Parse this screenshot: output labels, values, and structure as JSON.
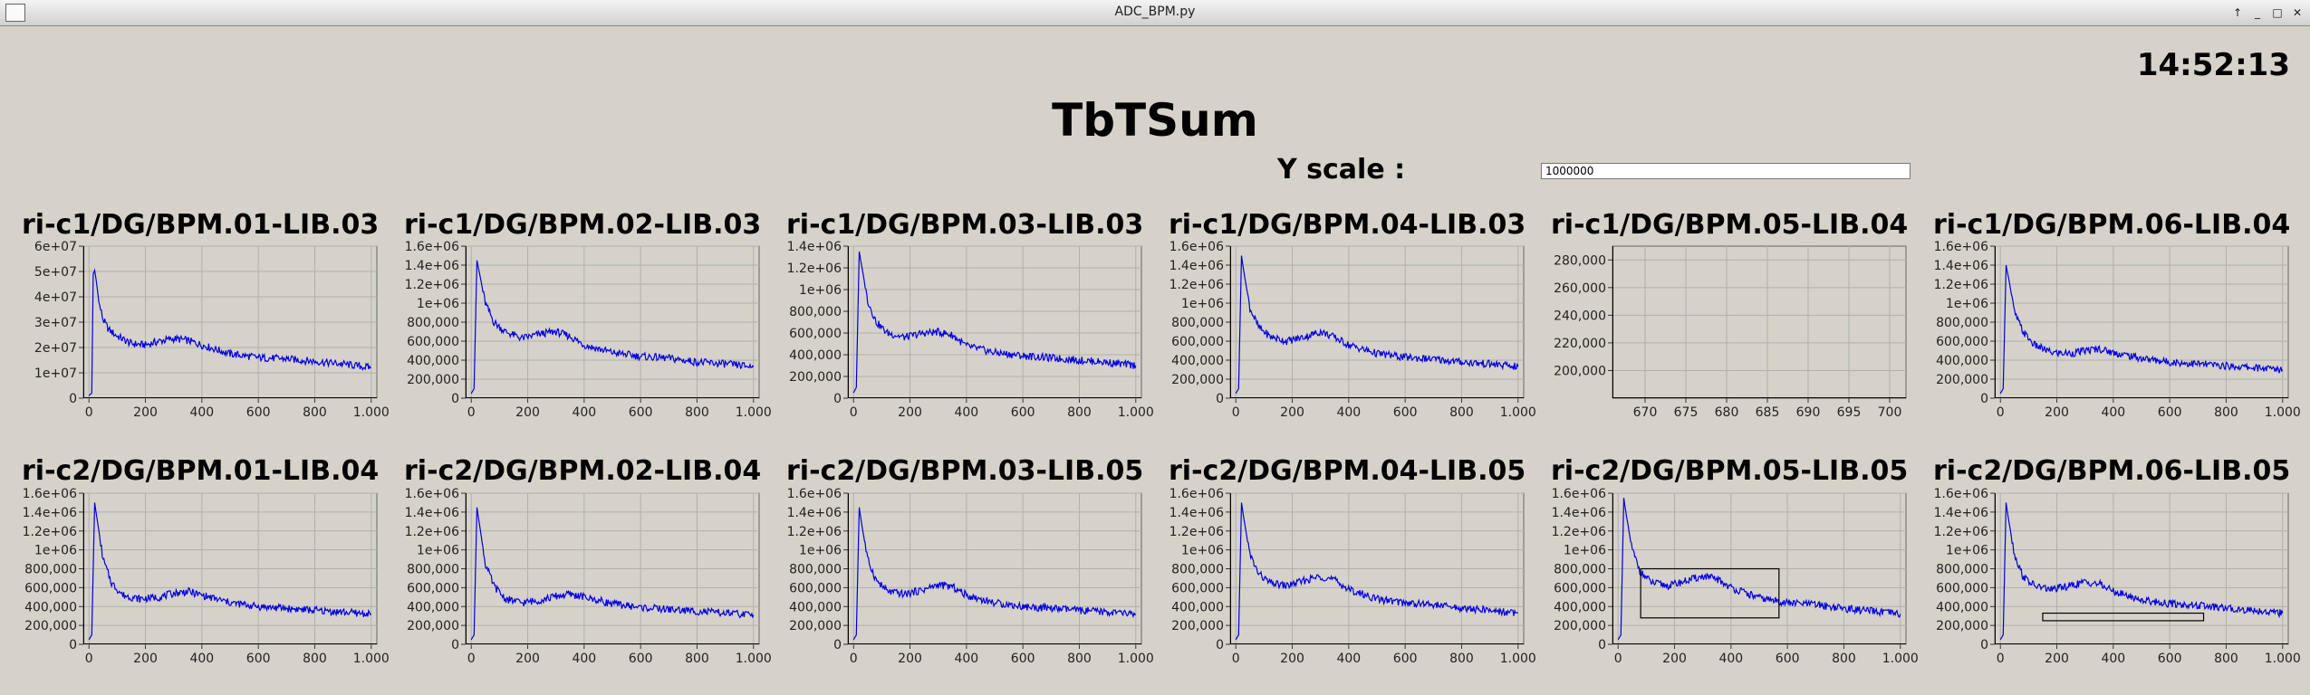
{
  "window": {
    "title": "ADC_BPM.py"
  },
  "clock": "14:52:13",
  "main_title": "TbTSum",
  "yscale": {
    "label": "Y scale :",
    "value": "1000000"
  },
  "colors": {
    "trace": "#0000dd",
    "grid": "#b0b0b0",
    "plot_bg": "#d6d2c9"
  },
  "chart_data": [
    {
      "type": "line",
      "title": "ri-c1/DG/BPM.01-LIB.03",
      "xlim": [
        -20,
        1020
      ],
      "ylim": [
        0,
        60000000
      ],
      "xticks": [
        0,
        200,
        400,
        600,
        800,
        1000
      ],
      "xtick_labels": [
        "0",
        "200",
        "400",
        "600",
        "800",
        "1.000"
      ],
      "yticks": [
        0,
        10000000,
        20000000,
        30000000,
        40000000,
        50000000,
        60000000
      ],
      "ytick_labels": [
        "0",
        "1e+07",
        "2e+07",
        "3e+07",
        "4e+07",
        "5e+07",
        "6e+07"
      ],
      "series": [
        {
          "x": [
            0,
            10,
            15,
            20,
            25,
            35,
            50,
            70,
            100,
            150,
            200,
            250,
            300,
            350,
            400,
            500,
            600,
            700,
            800,
            900,
            1000
          ],
          "y": [
            1000000,
            2000000,
            49000000,
            50500000,
            47000000,
            38000000,
            31000000,
            27000000,
            24500000,
            21500000,
            21000000,
            22500000,
            23500000,
            22800000,
            21000000,
            17500000,
            16000000,
            15500000,
            14500000,
            13500000,
            12000000
          ]
        }
      ]
    },
    {
      "type": "line",
      "title": "ri-c1/DG/BPM.02-LIB.03",
      "xlim": [
        -20,
        1020
      ],
      "ylim": [
        0,
        1600000
      ],
      "xticks": [
        0,
        200,
        400,
        600,
        800,
        1000
      ],
      "xtick_labels": [
        "0",
        "200",
        "400",
        "600",
        "800",
        "1.000"
      ],
      "yticks": [
        0,
        200000,
        400000,
        600000,
        800000,
        1000000,
        1200000,
        1400000,
        1600000
      ],
      "ytick_labels": [
        "0",
        "200,000",
        "400,000",
        "600,000",
        "800,000",
        "1e+06",
        "1.2e+06",
        "1.4e+06",
        "1.6e+06"
      ],
      "series": [
        {
          "x": [
            0,
            10,
            20,
            30,
            50,
            80,
            120,
            180,
            250,
            300,
            350,
            400,
            500,
            600,
            700,
            800,
            900,
            1000
          ],
          "y": [
            50000,
            100000,
            1450000,
            1300000,
            1000000,
            800000,
            700000,
            630000,
            680000,
            700000,
            650000,
            560000,
            480000,
            440000,
            420000,
            380000,
            360000,
            330000
          ]
        }
      ]
    },
    {
      "type": "line",
      "title": "ri-c1/DG/BPM.03-LIB.03",
      "xlim": [
        -20,
        1020
      ],
      "ylim": [
        0,
        1400000
      ],
      "xticks": [
        0,
        200,
        400,
        600,
        800,
        1000
      ],
      "xtick_labels": [
        "0",
        "200",
        "400",
        "600",
        "800",
        "1.000"
      ],
      "yticks": [
        0,
        200000,
        400000,
        600000,
        800000,
        1000000,
        1200000,
        1400000
      ],
      "ytick_labels": [
        "0",
        "200,000",
        "400,000",
        "600,000",
        "800,000",
        "1e+06",
        "1.2e+06",
        "1.4e+06"
      ],
      "series": [
        {
          "x": [
            0,
            10,
            20,
            30,
            50,
            80,
            120,
            180,
            250,
            300,
            350,
            400,
            500,
            600,
            700,
            800,
            900,
            1000
          ],
          "y": [
            50000,
            100000,
            1350000,
            1200000,
            900000,
            700000,
            600000,
            560000,
            600000,
            610000,
            580000,
            480000,
            420000,
            390000,
            370000,
            350000,
            330000,
            300000
          ]
        }
      ]
    },
    {
      "type": "line",
      "title": "ri-c1/DG/BPM.04-LIB.03",
      "xlim": [
        -20,
        1020
      ],
      "ylim": [
        0,
        1600000
      ],
      "xticks": [
        0,
        200,
        400,
        600,
        800,
        1000
      ],
      "xtick_labels": [
        "0",
        "200",
        "400",
        "600",
        "800",
        "1.000"
      ],
      "yticks": [
        0,
        200000,
        400000,
        600000,
        800000,
        1000000,
        1200000,
        1400000,
        1600000
      ],
      "ytick_labels": [
        "0",
        "200,000",
        "400,000",
        "600,000",
        "800,000",
        "1e+06",
        "1.2e+06",
        "1.4e+06",
        "1.6e+06"
      ],
      "series": [
        {
          "x": [
            0,
            10,
            20,
            30,
            50,
            80,
            120,
            180,
            250,
            300,
            350,
            400,
            500,
            600,
            700,
            800,
            900,
            1000
          ],
          "y": [
            50000,
            100000,
            1500000,
            1300000,
            950000,
            750000,
            650000,
            600000,
            650000,
            700000,
            640000,
            560000,
            470000,
            430000,
            410000,
            380000,
            360000,
            330000
          ]
        }
      ]
    },
    {
      "type": "line",
      "title": "ri-c1/DG/BPM.05-LIB.04",
      "xlim": [
        666,
        702
      ],
      "ylim": [
        180000,
        290000
      ],
      "xticks": [
        670,
        675,
        680,
        685,
        690,
        695,
        700
      ],
      "xtick_labels": [
        "670",
        "675",
        "680",
        "685",
        "690",
        "695",
        "700"
      ],
      "yticks": [
        200000,
        220000,
        240000,
        260000,
        280000
      ],
      "ytick_labels": [
        "200,000",
        "220,000",
        "240,000",
        "260,000",
        "280,000"
      ],
      "series": []
    },
    {
      "type": "line",
      "title": "ri-c1/DG/BPM.06-LIB.04",
      "xlim": [
        -20,
        1020
      ],
      "ylim": [
        0,
        1600000
      ],
      "xticks": [
        0,
        200,
        400,
        600,
        800,
        1000
      ],
      "xtick_labels": [
        "0",
        "200",
        "400",
        "600",
        "800",
        "1.000"
      ],
      "yticks": [
        0,
        200000,
        400000,
        600000,
        800000,
        1000000,
        1200000,
        1400000,
        1600000
      ],
      "ytick_labels": [
        "0",
        "200,000",
        "400,000",
        "600,000",
        "800,000",
        "1e+06",
        "1.2e+06",
        "1.4e+06",
        "1.6e+06"
      ],
      "series": [
        {
          "x": [
            0,
            10,
            20,
            30,
            50,
            80,
            120,
            180,
            250,
            300,
            350,
            400,
            500,
            600,
            700,
            800,
            900,
            1000
          ],
          "y": [
            50000,
            100000,
            1400000,
            1250000,
            900000,
            700000,
            560000,
            480000,
            470000,
            500000,
            520000,
            480000,
            420000,
            380000,
            360000,
            340000,
            320000,
            300000
          ]
        }
      ]
    },
    {
      "type": "line",
      "title": "ri-c2/DG/BPM.01-LIB.04",
      "xlim": [
        -20,
        1020
      ],
      "ylim": [
        0,
        1600000
      ],
      "xticks": [
        0,
        200,
        400,
        600,
        800,
        1000
      ],
      "xtick_labels": [
        "0",
        "200",
        "400",
        "600",
        "800",
        "1.000"
      ],
      "yticks": [
        0,
        200000,
        400000,
        600000,
        800000,
        1000000,
        1200000,
        1400000,
        1600000
      ],
      "ytick_labels": [
        "0",
        "200,000",
        "400,000",
        "600,000",
        "800,000",
        "1e+06",
        "1.2e+06",
        "1.4e+06",
        "1.6e+06"
      ],
      "series": [
        {
          "x": [
            0,
            10,
            20,
            30,
            50,
            80,
            120,
            180,
            250,
            300,
            350,
            400,
            500,
            600,
            700,
            800,
            900,
            1000
          ],
          "y": [
            50000,
            100000,
            1500000,
            1300000,
            900000,
            650000,
            520000,
            480000,
            500000,
            540000,
            560000,
            520000,
            440000,
            400000,
            380000,
            360000,
            340000,
            320000
          ]
        }
      ]
    },
    {
      "type": "line",
      "title": "ri-c2/DG/BPM.02-LIB.04",
      "xlim": [
        -20,
        1020
      ],
      "ylim": [
        0,
        1600000
      ],
      "xticks": [
        0,
        200,
        400,
        600,
        800,
        1000
      ],
      "xtick_labels": [
        "0",
        "200",
        "400",
        "600",
        "800",
        "1.000"
      ],
      "yticks": [
        0,
        200000,
        400000,
        600000,
        800000,
        1000000,
        1200000,
        1400000,
        1600000
      ],
      "ytick_labels": [
        "0",
        "200,000",
        "400,000",
        "600,000",
        "800,000",
        "1e+06",
        "1.2e+06",
        "1.4e+06",
        "1.6e+06"
      ],
      "series": [
        {
          "x": [
            0,
            10,
            20,
            30,
            50,
            80,
            120,
            180,
            250,
            300,
            350,
            400,
            500,
            600,
            700,
            800,
            900,
            1000
          ],
          "y": [
            50000,
            100000,
            1450000,
            1250000,
            850000,
            620000,
            480000,
            440000,
            470000,
            510000,
            530000,
            500000,
            430000,
            390000,
            370000,
            350000,
            330000,
            310000
          ]
        }
      ]
    },
    {
      "type": "line",
      "title": "ri-c2/DG/BPM.03-LIB.05",
      "xlim": [
        -20,
        1020
      ],
      "ylim": [
        0,
        1600000
      ],
      "xticks": [
        0,
        200,
        400,
        600,
        800,
        1000
      ],
      "xtick_labels": [
        "0",
        "200",
        "400",
        "600",
        "800",
        "1.000"
      ],
      "yticks": [
        0,
        200000,
        400000,
        600000,
        800000,
        1000000,
        1200000,
        1400000,
        1600000
      ],
      "ytick_labels": [
        "0",
        "200,000",
        "400,000",
        "600,000",
        "800,000",
        "1e+06",
        "1.2e+06",
        "1.4e+06",
        "1.6e+06"
      ],
      "series": [
        {
          "x": [
            0,
            10,
            20,
            30,
            50,
            80,
            120,
            180,
            250,
            300,
            350,
            400,
            500,
            600,
            700,
            800,
            900,
            1000
          ],
          "y": [
            50000,
            100000,
            1450000,
            1250000,
            900000,
            680000,
            560000,
            530000,
            580000,
            630000,
            610000,
            520000,
            440000,
            400000,
            380000,
            360000,
            340000,
            320000
          ]
        }
      ]
    },
    {
      "type": "line",
      "title": "ri-c2/DG/BPM.04-LIB.05",
      "xlim": [
        -20,
        1020
      ],
      "ylim": [
        0,
        1600000
      ],
      "xticks": [
        0,
        200,
        400,
        600,
        800,
        1000
      ],
      "xtick_labels": [
        "0",
        "200",
        "400",
        "600",
        "800",
        "1.000"
      ],
      "yticks": [
        0,
        200000,
        400000,
        600000,
        800000,
        1000000,
        1200000,
        1400000,
        1600000
      ],
      "ytick_labels": [
        "0",
        "200,000",
        "400,000",
        "600,000",
        "800,000",
        "1e+06",
        "1.2e+06",
        "1.4e+06",
        "1.6e+06"
      ],
      "series": [
        {
          "x": [
            0,
            10,
            20,
            30,
            50,
            80,
            120,
            180,
            250,
            300,
            350,
            400,
            500,
            600,
            700,
            800,
            900,
            1000
          ],
          "y": [
            50000,
            100000,
            1500000,
            1300000,
            950000,
            750000,
            650000,
            620000,
            680000,
            720000,
            680000,
            580000,
            480000,
            440000,
            420000,
            380000,
            360000,
            330000
          ]
        }
      ]
    },
    {
      "type": "line",
      "title": "ri-c2/DG/BPM.05-LIB.05",
      "xlim": [
        -20,
        1020
      ],
      "ylim": [
        0,
        1600000
      ],
      "xticks": [
        0,
        200,
        400,
        600,
        800,
        1000
      ],
      "xtick_labels": [
        "0",
        "200",
        "400",
        "600",
        "800",
        "1.000"
      ],
      "yticks": [
        0,
        200000,
        400000,
        600000,
        800000,
        1000000,
        1200000,
        1400000,
        1600000
      ],
      "ytick_labels": [
        "0",
        "200,000",
        "400,000",
        "600,000",
        "800,000",
        "1e+06",
        "1.2e+06",
        "1.4e+06",
        "1.6e+06"
      ],
      "zoom_box": {
        "x": [
          80,
          570
        ],
        "y": [
          280000,
          800000
        ]
      },
      "series": [
        {
          "x": [
            0,
            10,
            20,
            30,
            50,
            80,
            120,
            180,
            250,
            300,
            350,
            400,
            500,
            600,
            700,
            800,
            900,
            1000
          ],
          "y": [
            50000,
            100000,
            1550000,
            1350000,
            1000000,
            760000,
            650000,
            620000,
            680000,
            720000,
            690000,
            600000,
            490000,
            440000,
            420000,
            380000,
            350000,
            320000
          ]
        }
      ]
    },
    {
      "type": "line",
      "title": "ri-c2/DG/BPM.06-LIB.05",
      "xlim": [
        -20,
        1020
      ],
      "ylim": [
        0,
        1600000
      ],
      "xticks": [
        0,
        200,
        400,
        600,
        800,
        1000
      ],
      "xtick_labels": [
        "0",
        "200",
        "400",
        "600",
        "800",
        "1.000"
      ],
      "yticks": [
        0,
        200000,
        400000,
        600000,
        800000,
        1000000,
        1200000,
        1400000,
        1600000
      ],
      "ytick_labels": [
        "0",
        "200,000",
        "400,000",
        "600,000",
        "800,000",
        "1e+06",
        "1.2e+06",
        "1.4e+06",
        "1.6e+06"
      ],
      "zoom_box": {
        "x": [
          150,
          720
        ],
        "y": [
          250000,
          330000
        ]
      },
      "series": [
        {
          "x": [
            0,
            10,
            20,
            30,
            50,
            80,
            120,
            180,
            250,
            300,
            350,
            400,
            500,
            600,
            700,
            800,
            900,
            1000
          ],
          "y": [
            50000,
            100000,
            1500000,
            1300000,
            950000,
            720000,
            620000,
            580000,
            620000,
            660000,
            640000,
            560000,
            470000,
            430000,
            410000,
            380000,
            360000,
            330000
          ]
        }
      ]
    }
  ]
}
